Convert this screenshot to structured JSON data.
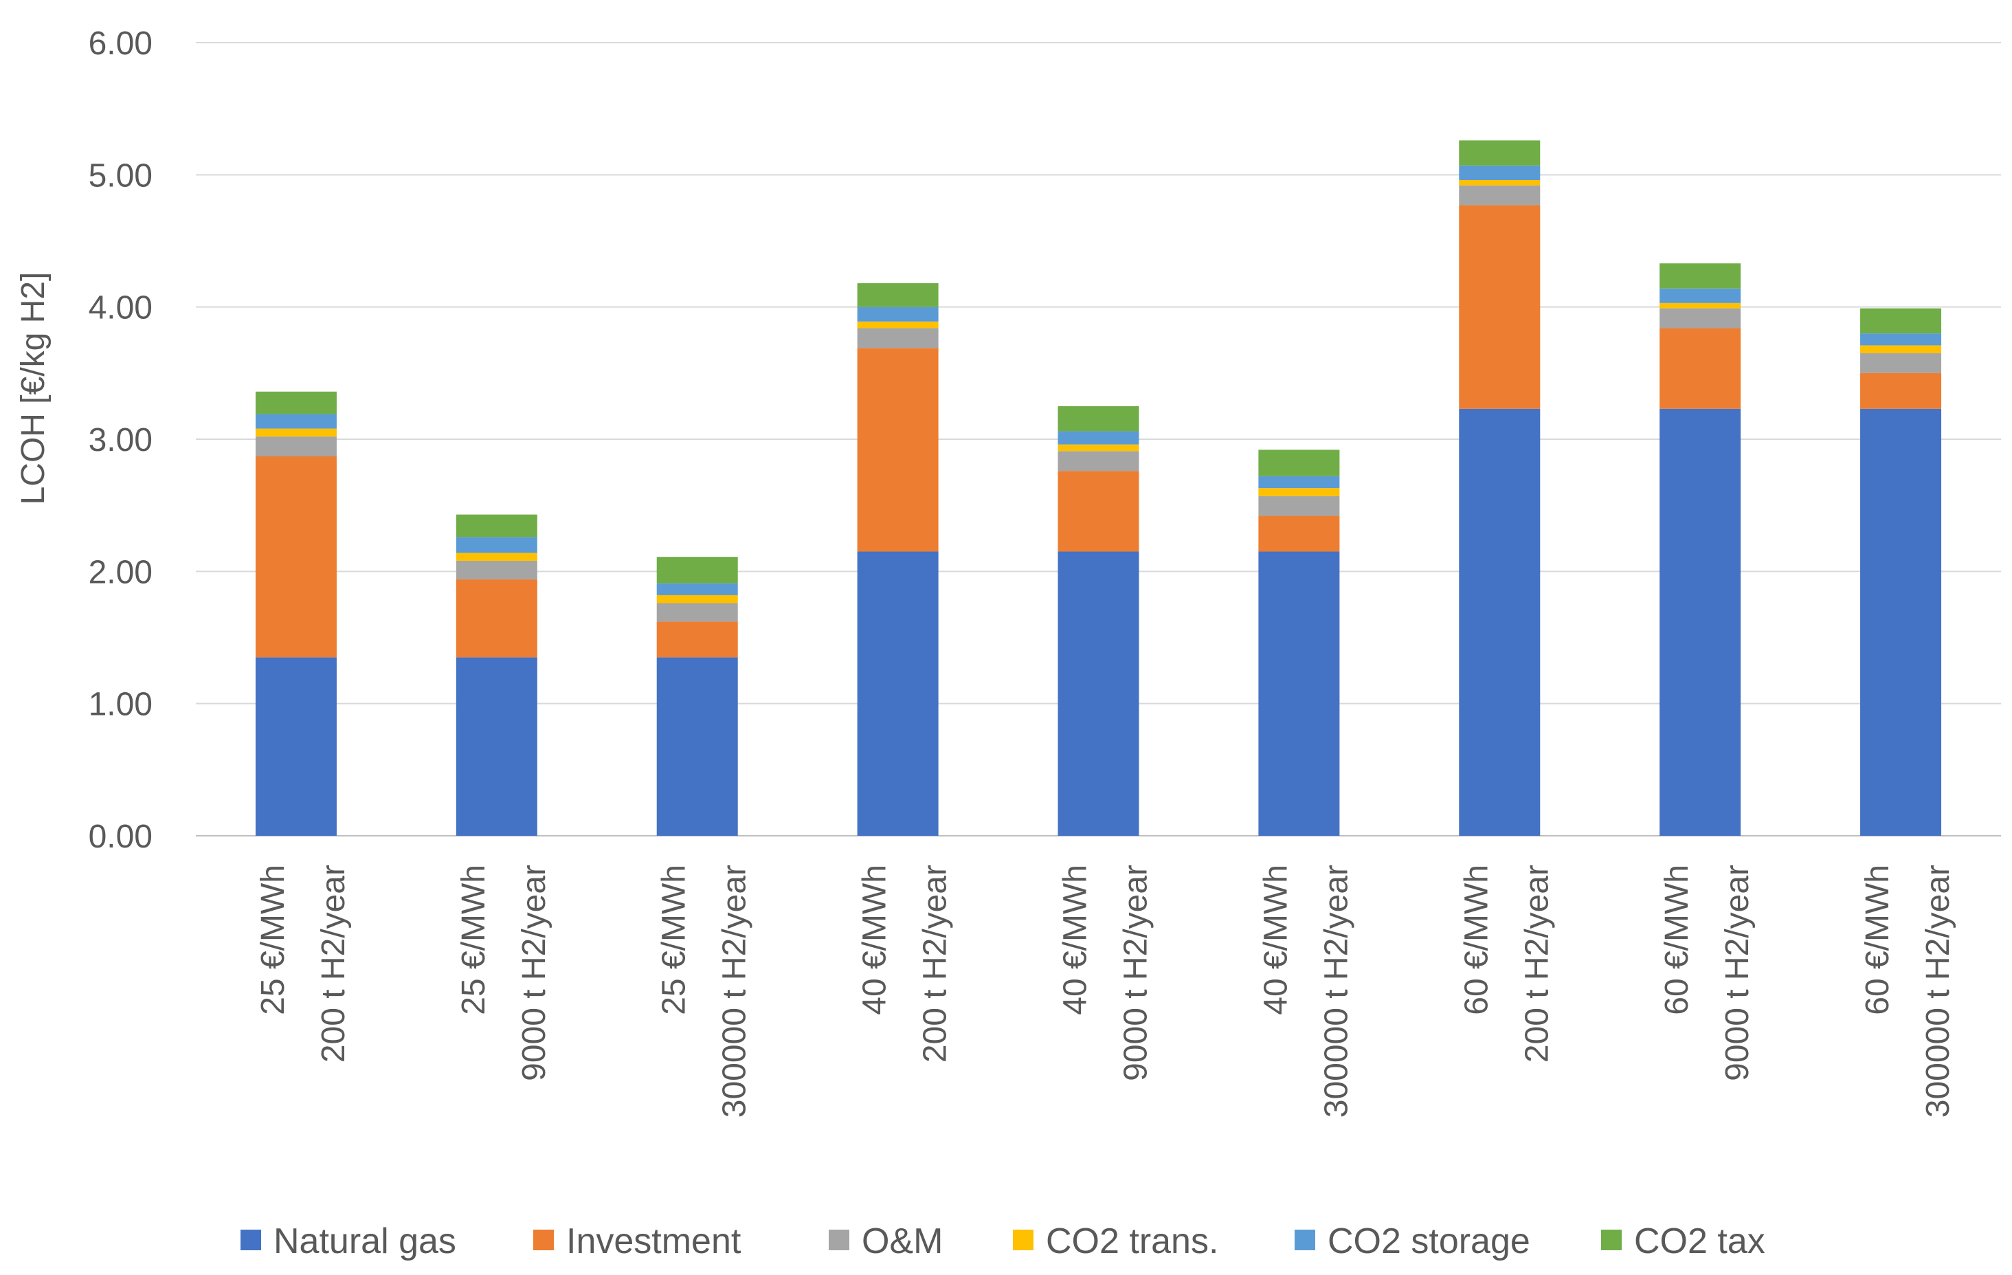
{
  "chart_data": {
    "type": "bar",
    "stacked": true,
    "title": "",
    "xlabel": "",
    "ylabel": "LCOH [€/kg H2]",
    "ylim": [
      0,
      6
    ],
    "y_ticks": [
      "0.00",
      "1.00",
      "2.00",
      "3.00",
      "4.00",
      "5.00",
      "6.00"
    ],
    "grid": true,
    "legend_position": "bottom",
    "categories": [
      [
        "25 €/MWh",
        "200 t H2/year"
      ],
      [
        "25 €/MWh",
        "9000 t H2/year"
      ],
      [
        "25 €/MWh",
        "300000 t H2/year"
      ],
      [
        "40 €/MWh",
        "200 t H2/year"
      ],
      [
        "40 €/MWh",
        "9000 t H2/year"
      ],
      [
        "40 €/MWh",
        "300000 t H2/year"
      ],
      [
        "60 €/MWh",
        "200 t H2/year"
      ],
      [
        "60 €/MWh",
        "9000 t H2/year"
      ],
      [
        "60 €/MWh",
        "300000 t H2/year"
      ]
    ],
    "series": [
      {
        "name": "Natural gas",
        "color": "#4472c4",
        "values": [
          1.35,
          1.35,
          1.35,
          2.15,
          2.15,
          2.15,
          3.23,
          3.23,
          3.23
        ]
      },
      {
        "name": "Investment",
        "color": "#ed7d31",
        "values": [
          1.52,
          0.59,
          0.27,
          1.54,
          0.61,
          0.27,
          1.54,
          0.61,
          0.27
        ]
      },
      {
        "name": "O&M",
        "color": "#a5a5a5",
        "values": [
          0.15,
          0.14,
          0.14,
          0.15,
          0.15,
          0.15,
          0.15,
          0.15,
          0.15
        ]
      },
      {
        "name": "CO2 trans.",
        "color": "#ffc000",
        "values": [
          0.06,
          0.06,
          0.06,
          0.05,
          0.05,
          0.06,
          0.04,
          0.04,
          0.06
        ]
      },
      {
        "name": "CO2 storage",
        "color": "#5b9bd5",
        "values": [
          0.11,
          0.12,
          0.09,
          0.11,
          0.1,
          0.09,
          0.11,
          0.11,
          0.09
        ]
      },
      {
        "name": "CO2 tax",
        "color": "#70ad47",
        "values": [
          0.17,
          0.17,
          0.2,
          0.18,
          0.19,
          0.2,
          0.19,
          0.19,
          0.19
        ]
      }
    ]
  }
}
